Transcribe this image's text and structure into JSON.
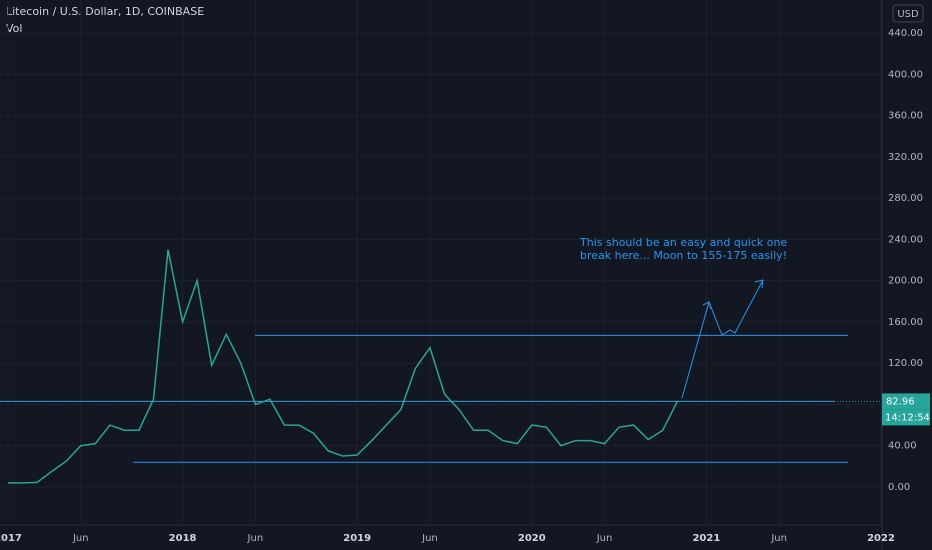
{
  "chart_data": {
    "type": "line",
    "title": "Litecoin / U.S. Dollar, 1D, COINBASE",
    "subtitle": "Vol",
    "currency": "USD",
    "x": [
      "2017-01",
      "2017-02",
      "2017-03",
      "2017-04",
      "2017-05",
      "2017-06",
      "2017-07",
      "2017-08",
      "2017-09",
      "2017-10",
      "2017-11",
      "2017-12",
      "2018-01",
      "2018-02",
      "2018-03",
      "2018-04",
      "2018-05",
      "2018-06",
      "2018-07",
      "2018-08",
      "2018-09",
      "2018-10",
      "2018-11",
      "2018-12",
      "2019-01",
      "2019-02",
      "2019-03",
      "2019-04",
      "2019-05",
      "2019-06",
      "2019-07",
      "2019-08",
      "2019-09",
      "2019-10",
      "2019-11",
      "2019-12",
      "2020-01",
      "2020-02",
      "2020-03",
      "2020-04",
      "2020-05",
      "2020-06",
      "2020-07",
      "2020-08",
      "2020-09",
      "2020-10",
      "2020-11"
    ],
    "series": [
      {
        "name": "LTCUSD",
        "color": "#26a69a",
        "values": [
          4,
          4,
          4.5,
          15,
          25,
          40,
          42,
          60,
          55,
          55,
          85,
          230,
          160,
          200,
          118,
          148,
          120,
          80,
          85,
          60,
          60,
          52,
          35,
          30,
          31,
          45,
          60,
          75,
          115,
          135,
          90,
          75,
          55,
          55,
          45,
          42,
          60,
          58,
          40,
          45,
          45,
          42,
          58,
          60,
          46,
          55,
          82.96
        ]
      }
    ],
    "ylim": [
      -40,
      460
    ],
    "yticks": [
      {
        "value": 0,
        "label": "0.00"
      },
      {
        "value": 40,
        "label": "40.00"
      },
      {
        "value": 80,
        "label": "80.00"
      },
      {
        "value": 120,
        "label": "120.00"
      },
      {
        "value": 160,
        "label": "160.00"
      },
      {
        "value": 200,
        "label": "200.00"
      },
      {
        "value": 240,
        "label": "240.00"
      },
      {
        "value": 280,
        "label": "280.00"
      },
      {
        "value": 320,
        "label": "320.00"
      },
      {
        "value": 360,
        "label": "360.00"
      },
      {
        "value": 400,
        "label": "400.00"
      },
      {
        "value": 440,
        "label": "440.00"
      }
    ],
    "xticks": [
      {
        "value": "2017-01",
        "label": "2017"
      },
      {
        "value": "2017-06",
        "label": "Jun"
      },
      {
        "value": "2018-01",
        "label": "2018"
      },
      {
        "value": "2018-06",
        "label": "Jun"
      },
      {
        "value": "2019-01",
        "label": "2019"
      },
      {
        "value": "2019-06",
        "label": "Jun"
      },
      {
        "value": "2020-01",
        "label": "2020"
      },
      {
        "value": "2020-06",
        "label": "Jun"
      },
      {
        "value": "2021-01",
        "label": "2021"
      },
      {
        "value": "2021-06",
        "label": "Jun"
      },
      {
        "value": "2022-01",
        "label": "2022"
      }
    ],
    "levels": [
      147,
      83,
      24
    ],
    "last_price": 82.96,
    "countdown": "14:12:54",
    "annotation": [
      "This should be an easy and quick one",
      "break here... Moon to 155-175 easily!"
    ],
    "grid": true
  }
}
